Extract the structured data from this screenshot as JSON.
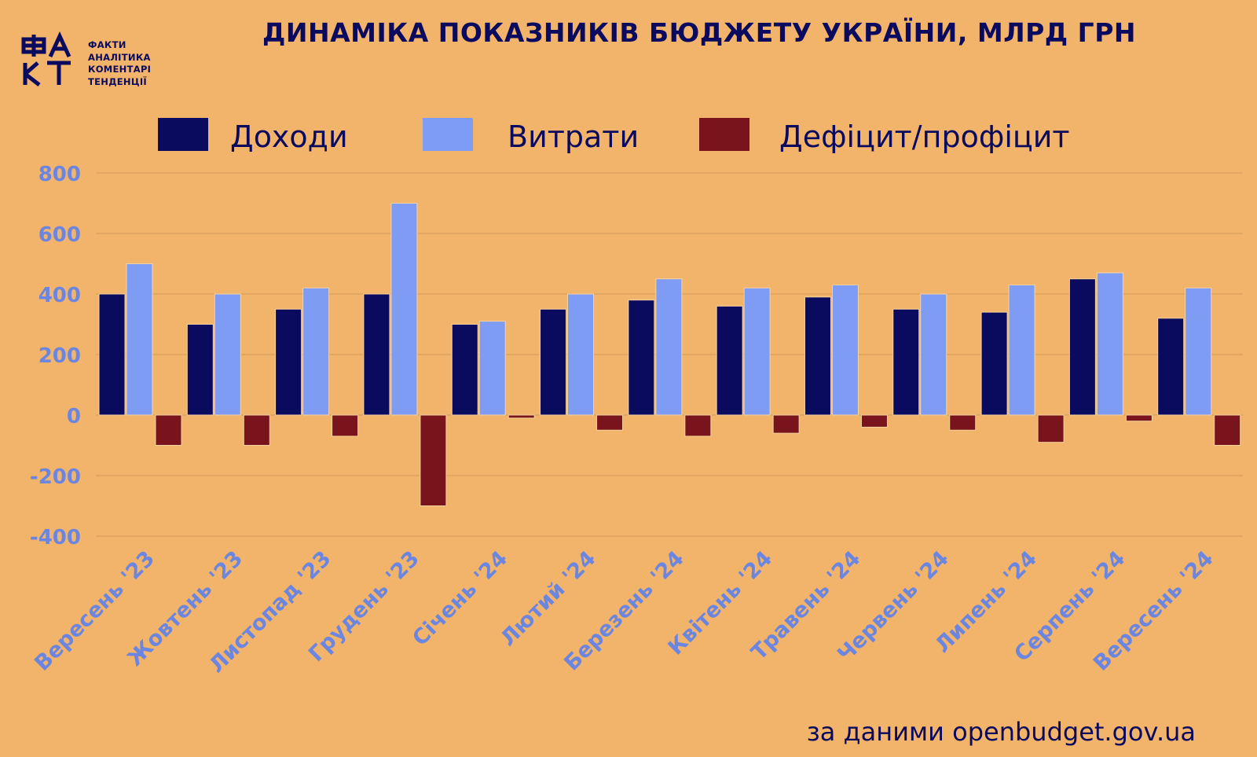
{
  "logo": {
    "mark": "ФАКТ",
    "lines": [
      "ФАКТИ",
      "АНАЛІТИКА",
      "КОМЕНТАРІ",
      "ТЕНДЕНЦІЇ"
    ]
  },
  "chart_data": {
    "type": "bar",
    "title": "ДИНАМІКА ПОКАЗНИКІВ БЮДЖЕТУ УКРАЇНИ, МЛРД ГРН",
    "categories": [
      "Вересень '23",
      "Жовтень '23",
      "Листопад '23",
      "Грудень '23",
      "Січень '24",
      "Лютий '24",
      "Березень '24",
      "Квітень '24",
      "Травень '24",
      "Червень '24",
      "Липень '24",
      "Серпень '24",
      "Вересень '24"
    ],
    "series": [
      {
        "name": "Доходи",
        "color": "#0a0a5e",
        "values": [
          400,
          300,
          350,
          400,
          300,
          350,
          380,
          360,
          390,
          350,
          340,
          450,
          320
        ]
      },
      {
        "name": "Витрати",
        "color": "#7f9cf5",
        "values": [
          500,
          400,
          420,
          700,
          310,
          400,
          450,
          420,
          430,
          400,
          430,
          470,
          420
        ]
      },
      {
        "name": "Дефіцит/профіцит",
        "color": "#7a141c",
        "values": [
          -100,
          -100,
          -70,
          -300,
          -10,
          -50,
          -70,
          -60,
          -40,
          -50,
          -90,
          -20,
          -100
        ]
      }
    ],
    "ylim": [
      -400,
      800
    ],
    "yticks": [
      "800",
      "600",
      "400",
      "200",
      "0",
      "-200",
      "-400"
    ],
    "grid": true,
    "legend_position": "top"
  },
  "source": "за даними openbudget.gov.ua",
  "colors": {
    "background": "#f2b36a",
    "text": "#0a0a5e",
    "axis_labels": "#6b86e0",
    "grid": "#d9a05f"
  }
}
